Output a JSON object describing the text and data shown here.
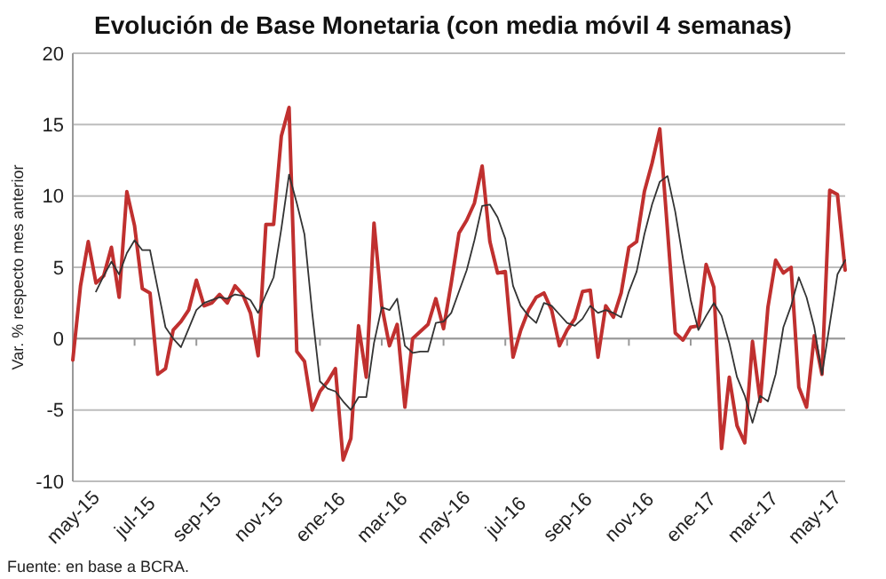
{
  "chart_data": {
    "type": "line",
    "title": "Evolución de Base Monetaria (con media móvil 4 semanas)",
    "ylabel": "Var. % respecto mes anterior",
    "annotations": [
      "Fuente: en base a BCRA."
    ],
    "categories": [
      "may-15",
      null,
      null,
      null,
      null,
      null,
      null,
      null,
      "jul-15",
      null,
      null,
      null,
      null,
      null,
      null,
      null,
      "sep-15",
      null,
      null,
      null,
      null,
      null,
      null,
      null,
      "nov-15",
      null,
      null,
      null,
      null,
      null,
      null,
      null,
      "ene-16",
      null,
      null,
      null,
      null,
      null,
      null,
      null,
      "mar-16",
      null,
      null,
      null,
      null,
      null,
      null,
      null,
      "may-16",
      null,
      null,
      null,
      null,
      null,
      null,
      null,
      "jul-16",
      null,
      null,
      null,
      null,
      null,
      null,
      null,
      "sep-16",
      null,
      null,
      null,
      null,
      null,
      null,
      null,
      "nov-16",
      null,
      null,
      null,
      null,
      null,
      null,
      null,
      "ene-17",
      null,
      null,
      null,
      null,
      null,
      null,
      null,
      "mar-17",
      null,
      null,
      null,
      null,
      null,
      null,
      null,
      "may-17",
      null,
      null,
      null,
      null
    ],
    "series": [
      {
        "color": "#c0302f",
        "values": [
          -1.5,
          3.7,
          6.8,
          3.9,
          4.4,
          6.4,
          2.9,
          10.3,
          7.9,
          3.5,
          3.2,
          -2.5,
          -2.1,
          0.6,
          1.2,
          2.0,
          4.1,
          2.3,
          2.5,
          3.1,
          2.5,
          3.7,
          3.1,
          1.8,
          -1.2,
          8.0,
          8.0,
          14.2,
          16.2,
          -0.9,
          -1.6,
          -5.0,
          -3.7,
          -3.0,
          -2.1,
          -8.5,
          -7.0,
          0.9,
          -2.7,
          8.1,
          2.3,
          -0.5,
          1.0,
          -4.8,
          0,
          0.5,
          1.0,
          2.8,
          0.7,
          3.9,
          7.4,
          8.3,
          9.5,
          12.1,
          6.8,
          4.6,
          4.7,
          -1.3,
          0.6,
          2.0,
          2.9,
          3.2,
          2.0,
          -0.5,
          0.6,
          1.4,
          3.3,
          3.4,
          -1.3,
          2.3,
          1.5,
          3.2,
          6.4,
          6.8,
          10.3,
          12.3,
          14.7,
          7.6,
          0.4,
          -0.1,
          0.8,
          0.9,
          5.2,
          3.6,
          -7.7,
          -2.7,
          -6.1,
          -7.3,
          -0.2,
          -4.4,
          2.2,
          5.5,
          4.6,
          5.0,
          -3.4,
          -4.8,
          0.2,
          -2.5,
          10.4,
          10.1,
          4.8
        ]
      },
      {
        "color": "#333333",
        "values": [
          null,
          null,
          null,
          3.3,
          4.4,
          5.4,
          4.5,
          6.0,
          6.9,
          6.2,
          6.2,
          3.5,
          0.8,
          0,
          -0.6,
          0.7,
          2.0,
          2.5,
          2.7,
          2.9,
          2.8,
          3.1,
          3.0,
          2.7,
          1.8,
          3.1,
          4.3,
          7.7,
          11.5,
          9.5,
          7.3,
          1.8,
          -3.0,
          -3.5,
          -3.7,
          -4.4,
          -5.0,
          -4.1,
          -4.1,
          -0.3,
          2.2,
          2.0,
          2.8,
          -0.5,
          -1.0,
          -0.9,
          -0.9,
          1.1,
          1.2,
          1.8,
          3.3,
          4.8,
          6.9,
          9.3,
          9.4,
          8.5,
          7.0,
          3.7,
          2.3,
          1.6,
          1.1,
          2.5,
          2.3,
          1.7,
          1.1,
          0.9,
          1.4,
          2.3,
          1.8,
          2.0,
          1.8,
          1.5,
          3.3,
          4.7,
          7.3,
          9.4,
          11.0,
          11.4,
          8.9,
          5.6,
          2.7,
          0.6,
          1.6,
          2.5,
          1.6,
          -0.3,
          -2.7,
          -4.0,
          -5.9,
          -4.0,
          -4.4,
          -2.5,
          0.8,
          2.3,
          4.3,
          2.9,
          0.8,
          -2.5,
          1.0,
          4.5,
          5.5
        ]
      }
    ],
    "ylim": [
      -10,
      20
    ],
    "yticks": [
      -10,
      -5,
      0,
      5,
      10,
      15,
      20
    ],
    "grid": "y",
    "marker": "none",
    "line_style": "solid"
  }
}
